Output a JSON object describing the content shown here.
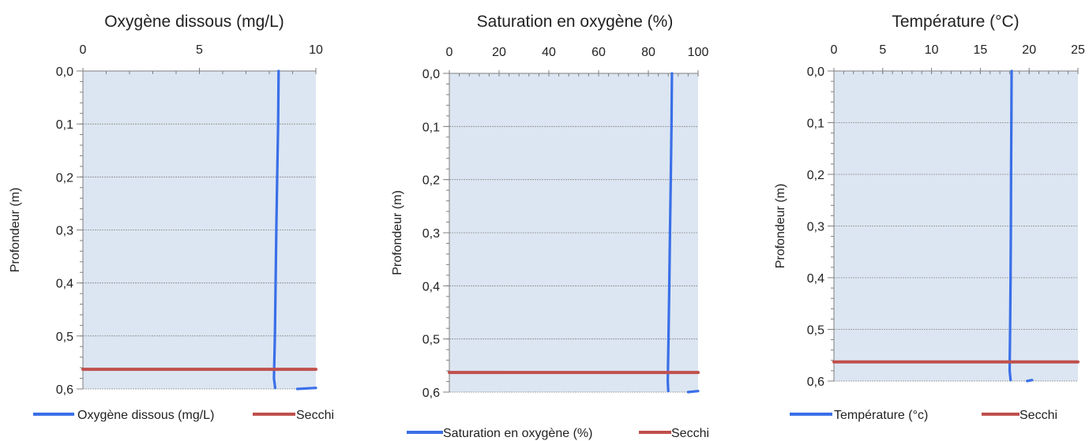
{
  "chart_data": [
    {
      "type": "line",
      "title": "Oxygène dissous (mg/L)",
      "xlabel": "",
      "ylabel": "Profondeur (m)",
      "xlim": [
        0,
        10
      ],
      "ylim": [
        0,
        0.6
      ],
      "y_inverted": true,
      "x_axis_position": "top",
      "x_ticks": [
        0,
        5,
        10
      ],
      "x_tick_labels": [
        "0",
        "5",
        "10"
      ],
      "y_ticks": [
        0,
        0.1,
        0.2,
        0.3,
        0.4,
        0.5,
        0.6
      ],
      "y_tick_labels": [
        "0,0",
        "0,1",
        "0,2",
        "0,3",
        "0,4",
        "0,5",
        "0,6"
      ],
      "grid": "horizontal",
      "legend_position": "bottom",
      "series": [
        {
          "name": "Oxygène dissous (mg/L)",
          "color": "#3a6fe8",
          "points": [
            {
              "x": 8.4,
              "y": 0.0
            },
            {
              "x": 8.38,
              "y": 0.1
            },
            {
              "x": 8.34,
              "y": 0.2
            },
            {
              "x": 8.3,
              "y": 0.3
            },
            {
              "x": 8.27,
              "y": 0.4
            },
            {
              "x": 8.24,
              "y": 0.5
            },
            {
              "x": 8.2,
              "y": 0.58
            },
            {
              "x": 8.25,
              "y": 0.598
            }
          ]
        },
        {
          "name": "",
          "color": "#3a6fe8",
          "points": [
            {
              "x": 9.2,
              "y": 0.6
            },
            {
              "x": 10.0,
              "y": 0.598
            }
          ]
        },
        {
          "name": "Secchi",
          "color": "#c0504d",
          "points": [
            {
              "x": 0,
              "y": 0.563
            },
            {
              "x": 10,
              "y": 0.563
            }
          ]
        }
      ]
    },
    {
      "type": "line",
      "title": "Saturation en oxygène (%)",
      "xlabel": "",
      "ylabel": "Profondeur (m)",
      "xlim": [
        0,
        100
      ],
      "ylim": [
        0,
        0.6
      ],
      "y_inverted": true,
      "x_axis_position": "top",
      "x_ticks": [
        0,
        20,
        40,
        60,
        80,
        100
      ],
      "x_tick_labels": [
        "0",
        "20",
        "40",
        "60",
        "80",
        "100"
      ],
      "y_ticks": [
        0,
        0.1,
        0.2,
        0.3,
        0.4,
        0.5,
        0.6
      ],
      "y_tick_labels": [
        "0,0",
        "0,1",
        "0,2",
        "0,3",
        "0,4",
        "0,5",
        "0,6"
      ],
      "grid": "horizontal",
      "legend_position": "bottom",
      "series": [
        {
          "name": "Saturation en oxygène (%)",
          "color": "#3a6fe8",
          "points": [
            {
              "x": 89.5,
              "y": 0.0
            },
            {
              "x": 89.3,
              "y": 0.1
            },
            {
              "x": 89.0,
              "y": 0.2
            },
            {
              "x": 88.7,
              "y": 0.3
            },
            {
              "x": 88.4,
              "y": 0.4
            },
            {
              "x": 88.1,
              "y": 0.5
            },
            {
              "x": 87.8,
              "y": 0.58
            },
            {
              "x": 88.0,
              "y": 0.598
            }
          ]
        },
        {
          "name": "",
          "color": "#3a6fe8",
          "points": [
            {
              "x": 96.0,
              "y": 0.6
            },
            {
              "x": 100.0,
              "y": 0.598
            }
          ]
        },
        {
          "name": "Secchi",
          "color": "#c0504d",
          "points": [
            {
              "x": 0,
              "y": 0.563
            },
            {
              "x": 100,
              "y": 0.563
            }
          ]
        }
      ]
    },
    {
      "type": "line",
      "title": "Température  (°C)",
      "xlabel": "",
      "ylabel": "Profondeur (m)",
      "xlim": [
        0,
        25
      ],
      "ylim": [
        0,
        0.6
      ],
      "y_inverted": true,
      "x_axis_position": "top",
      "x_ticks": [
        0,
        5,
        10,
        15,
        20,
        25
      ],
      "x_tick_labels": [
        "0",
        "5",
        "10",
        "15",
        "20",
        "25"
      ],
      "y_ticks": [
        0,
        0.1,
        0.2,
        0.3,
        0.4,
        0.5,
        0.6
      ],
      "y_tick_labels": [
        "0,0",
        "0,1",
        "0,2",
        "0,3",
        "0,4",
        "0,5",
        "0,6"
      ],
      "grid": "horizontal",
      "legend_position": "bottom",
      "series": [
        {
          "name": "Température (°c)",
          "color": "#3a6fe8",
          "points": [
            {
              "x": 18.2,
              "y": 0.0
            },
            {
              "x": 18.18,
              "y": 0.1
            },
            {
              "x": 18.15,
              "y": 0.2
            },
            {
              "x": 18.13,
              "y": 0.3
            },
            {
              "x": 18.1,
              "y": 0.4
            },
            {
              "x": 18.05,
              "y": 0.5
            },
            {
              "x": 18.0,
              "y": 0.58
            },
            {
              "x": 18.1,
              "y": 0.598
            }
          ]
        },
        {
          "name": "",
          "color": "#3a6fe8",
          "points": [
            {
              "x": 19.8,
              "y": 0.6
            },
            {
              "x": 20.3,
              "y": 0.598
            }
          ]
        },
        {
          "name": "Secchi",
          "color": "#c0504d",
          "points": [
            {
              "x": 0,
              "y": 0.563
            },
            {
              "x": 25,
              "y": 0.563
            }
          ]
        }
      ]
    }
  ]
}
